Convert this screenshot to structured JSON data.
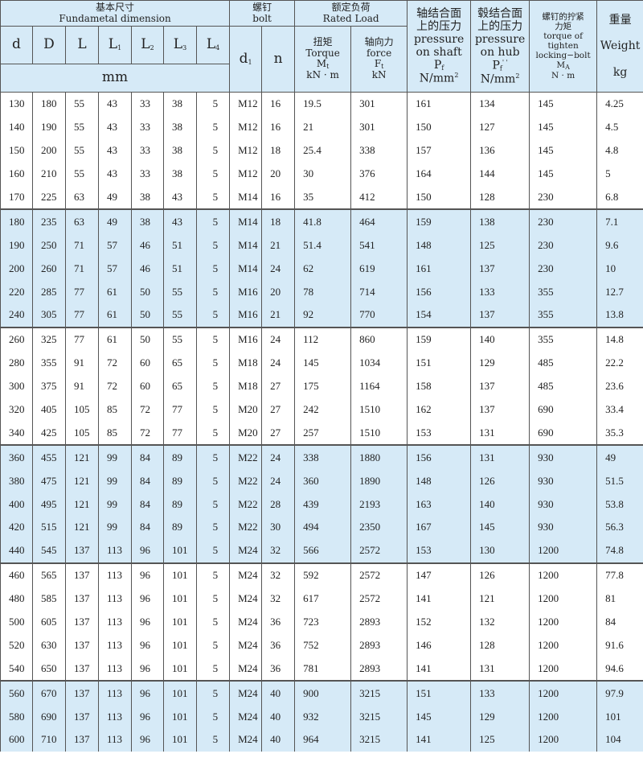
{
  "header": {
    "fundamental_cn": "基本尺寸",
    "fundamental_en": "Fundametal dimension",
    "bolt_cn": "螺钉",
    "bolt_en": "bolt",
    "rated_cn": "额定负荷",
    "rated_en": "Rated Load",
    "cols": {
      "d": "d",
      "D": "D",
      "L": "L",
      "L1": "L",
      "L2": "L",
      "L3": "L",
      "L4": "L",
      "d1": "d",
      "n": "n"
    },
    "subs": {
      "L1": "1",
      "L2": "2",
      "L3": "3",
      "L4": "4",
      "d1": "1",
      "Mt": "t",
      "Ft": "t",
      "Pf": "f",
      "Pf2": "f",
      "MA": "A"
    },
    "mm": "mm",
    "torque": {
      "cn": "扭矩",
      "en": "Torque",
      "sym": "M",
      "unit": "kN · m"
    },
    "force": {
      "cn": "轴向力",
      "en": "force",
      "sym": "F",
      "unit": "kN"
    },
    "shaft": {
      "cn1": "轴结合面",
      "cn2": "上的压力",
      "en1": "pressure",
      "en2": "on shaft",
      "sym": "P",
      "unit": "N/mm",
      "sup": "2"
    },
    "hub": {
      "cn1": "毂结合面",
      "cn2": "上的压力",
      "en1": "pressure",
      "en2": "on hub",
      "sym": "P",
      "prime": "' '",
      "unit": "N/mm",
      "sup": "2"
    },
    "bolt_torque": {
      "cn1": "螺钉的拧紧",
      "cn2": "力矩",
      "en1": "torque of",
      "en2": "tighten",
      "en3": "locking−bolt",
      "sym": "M",
      "unit": "N · m"
    },
    "weight": {
      "cn": "重量",
      "en": "Weight",
      "unit": "kg"
    }
  },
  "rows": [
    [
      "130",
      "180",
      "55",
      "43",
      "33",
      "38",
      "5",
      "M12",
      "16",
      "19.5",
      "301",
      "161",
      "134",
      "145",
      "4.25"
    ],
    [
      "140",
      "190",
      "55",
      "43",
      "33",
      "38",
      "5",
      "M12",
      "16",
      "21",
      "301",
      "150",
      "127",
      "145",
      "4.5"
    ],
    [
      "150",
      "200",
      "55",
      "43",
      "33",
      "38",
      "5",
      "M12",
      "18",
      "25.4",
      "338",
      "157",
      "136",
      "145",
      "4.8"
    ],
    [
      "160",
      "210",
      "55",
      "43",
      "33",
      "38",
      "5",
      "M12",
      "20",
      "30",
      "376",
      "164",
      "144",
      "145",
      "5"
    ],
    [
      "170",
      "225",
      "63",
      "49",
      "38",
      "43",
      "5",
      "M14",
      "16",
      "35",
      "412",
      "150",
      "128",
      "230",
      "6.8"
    ],
    [
      "180",
      "235",
      "63",
      "49",
      "38",
      "43",
      "5",
      "M14",
      "18",
      "41.8",
      "464",
      "159",
      "138",
      "230",
      "7.1"
    ],
    [
      "190",
      "250",
      "71",
      "57",
      "46",
      "51",
      "5",
      "M14",
      "21",
      "51.4",
      "541",
      "148",
      "125",
      "230",
      "9.6"
    ],
    [
      "200",
      "260",
      "71",
      "57",
      "46",
      "51",
      "5",
      "M14",
      "24",
      "62",
      "619",
      "161",
      "137",
      "230",
      "10"
    ],
    [
      "220",
      "285",
      "77",
      "61",
      "50",
      "55",
      "5",
      "M16",
      "20",
      "78",
      "714",
      "156",
      "133",
      "355",
      "12.7"
    ],
    [
      "240",
      "305",
      "77",
      "61",
      "50",
      "55",
      "5",
      "M16",
      "21",
      "92",
      "770",
      "154",
      "137",
      "355",
      "13.8"
    ],
    [
      "260",
      "325",
      "77",
      "61",
      "50",
      "55",
      "5",
      "M16",
      "24",
      "112",
      "860",
      "159",
      "140",
      "355",
      "14.8"
    ],
    [
      "280",
      "355",
      "91",
      "72",
      "60",
      "65",
      "5",
      "M18",
      "24",
      "145",
      "1034",
      "151",
      "129",
      "485",
      "22.2"
    ],
    [
      "300",
      "375",
      "91",
      "72",
      "60",
      "65",
      "5",
      "M18",
      "27",
      "175",
      "1164",
      "158",
      "137",
      "485",
      "23.6"
    ],
    [
      "320",
      "405",
      "105",
      "85",
      "72",
      "77",
      "5",
      "M20",
      "27",
      "242",
      "1510",
      "162",
      "137",
      "690",
      "33.4"
    ],
    [
      "340",
      "425",
      "105",
      "85",
      "72",
      "77",
      "5",
      "M20",
      "27",
      "257",
      "1510",
      "153",
      "131",
      "690",
      "35.3"
    ],
    [
      "360",
      "455",
      "121",
      "99",
      "84",
      "89",
      "5",
      "M22",
      "24",
      "338",
      "1880",
      "156",
      "131",
      "930",
      "49"
    ],
    [
      "380",
      "475",
      "121",
      "99",
      "84",
      "89",
      "5",
      "M22",
      "24",
      "360",
      "1890",
      "148",
      "126",
      "930",
      "51.5"
    ],
    [
      "400",
      "495",
      "121",
      "99",
      "84",
      "89",
      "5",
      "M22",
      "28",
      "439",
      "2193",
      "163",
      "140",
      "930",
      "53.8"
    ],
    [
      "420",
      "515",
      "121",
      "99",
      "84",
      "89",
      "5",
      "M22",
      "30",
      "494",
      "2350",
      "167",
      "145",
      "930",
      "56.3"
    ],
    [
      "440",
      "545",
      "137",
      "113",
      "96",
      "101",
      "5",
      "M24",
      "32",
      "566",
      "2572",
      "153",
      "130",
      "1200",
      "74.8"
    ],
    [
      "460",
      "565",
      "137",
      "113",
      "96",
      "101",
      "5",
      "M24",
      "32",
      "592",
      "2572",
      "147",
      "126",
      "1200",
      "77.8"
    ],
    [
      "480",
      "585",
      "137",
      "113",
      "96",
      "101",
      "5",
      "M24",
      "32",
      "617",
      "2572",
      "141",
      "121",
      "1200",
      "81"
    ],
    [
      "500",
      "605",
      "137",
      "113",
      "96",
      "101",
      "5",
      "M24",
      "36",
      "723",
      "2893",
      "152",
      "132",
      "1200",
      "84"
    ],
    [
      "520",
      "630",
      "137",
      "113",
      "96",
      "101",
      "5",
      "M24",
      "36",
      "752",
      "2893",
      "146",
      "128",
      "1200",
      "91.6"
    ],
    [
      "540",
      "650",
      "137",
      "113",
      "96",
      "101",
      "5",
      "M24",
      "36",
      "781",
      "2893",
      "141",
      "131",
      "1200",
      "94.6"
    ],
    [
      "560",
      "670",
      "137",
      "113",
      "96",
      "101",
      "5",
      "M24",
      "40",
      "900",
      "3215",
      "151",
      "133",
      "1200",
      "97.9"
    ],
    [
      "580",
      "690",
      "137",
      "113",
      "96",
      "101",
      "5",
      "M24",
      "40",
      "932",
      "3215",
      "145",
      "129",
      "1200",
      "101"
    ],
    [
      "600",
      "710",
      "137",
      "113",
      "96",
      "101",
      "5",
      "M24",
      "40",
      "964",
      "3215",
      "141",
      "125",
      "1200",
      "104"
    ]
  ],
  "colors": {
    "header_bg": "#d6eaf7",
    "alt_group_bg": "#d6eaf7",
    "border": "#555555"
  }
}
